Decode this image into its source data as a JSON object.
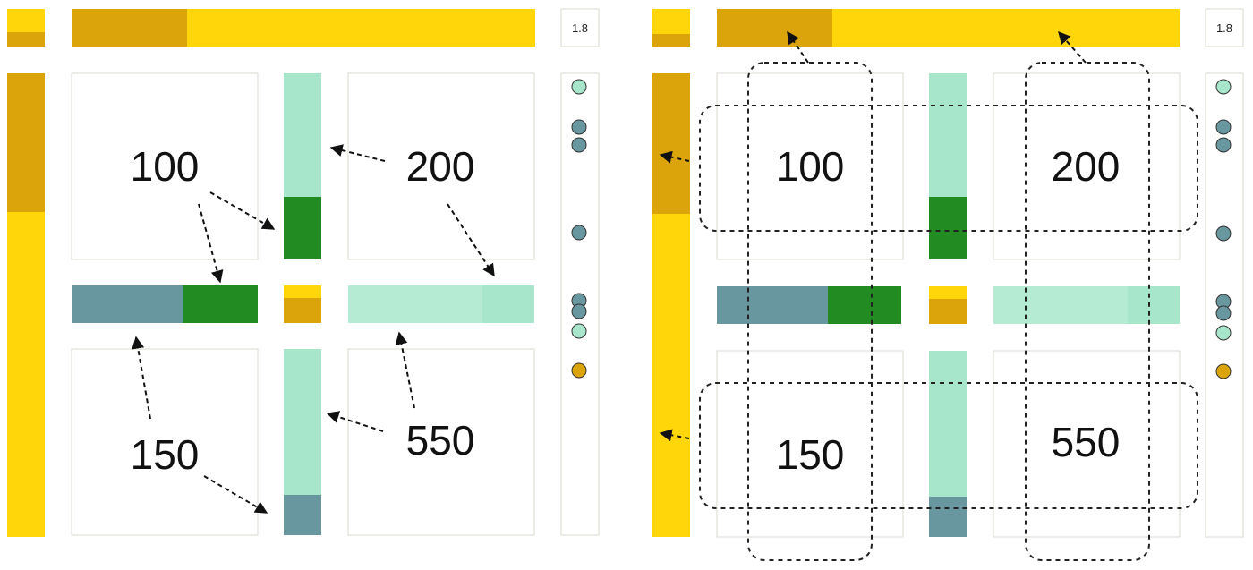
{
  "colors": {
    "gold": "#FFD60A",
    "dark_gold": "#DBA40B",
    "mint": "#A8E6CB",
    "green": "#228B22",
    "teal": "#6997A0",
    "frame": "#DDD8CC"
  },
  "panels": [
    {
      "id": "left",
      "scale_label": "1.8",
      "cells": {
        "top_left": "100",
        "top_right": "200",
        "bottom_left": "150",
        "bottom_right": "550"
      }
    },
    {
      "id": "right",
      "scale_label": "1.8",
      "cells": {
        "top_left": "100",
        "top_right": "200",
        "bottom_left": "150",
        "bottom_right": "550"
      }
    }
  ],
  "strip_dots": [
    "mint",
    "teal",
    "teal",
    "teal",
    "teal",
    "teal",
    "mint",
    "dark_gold"
  ]
}
